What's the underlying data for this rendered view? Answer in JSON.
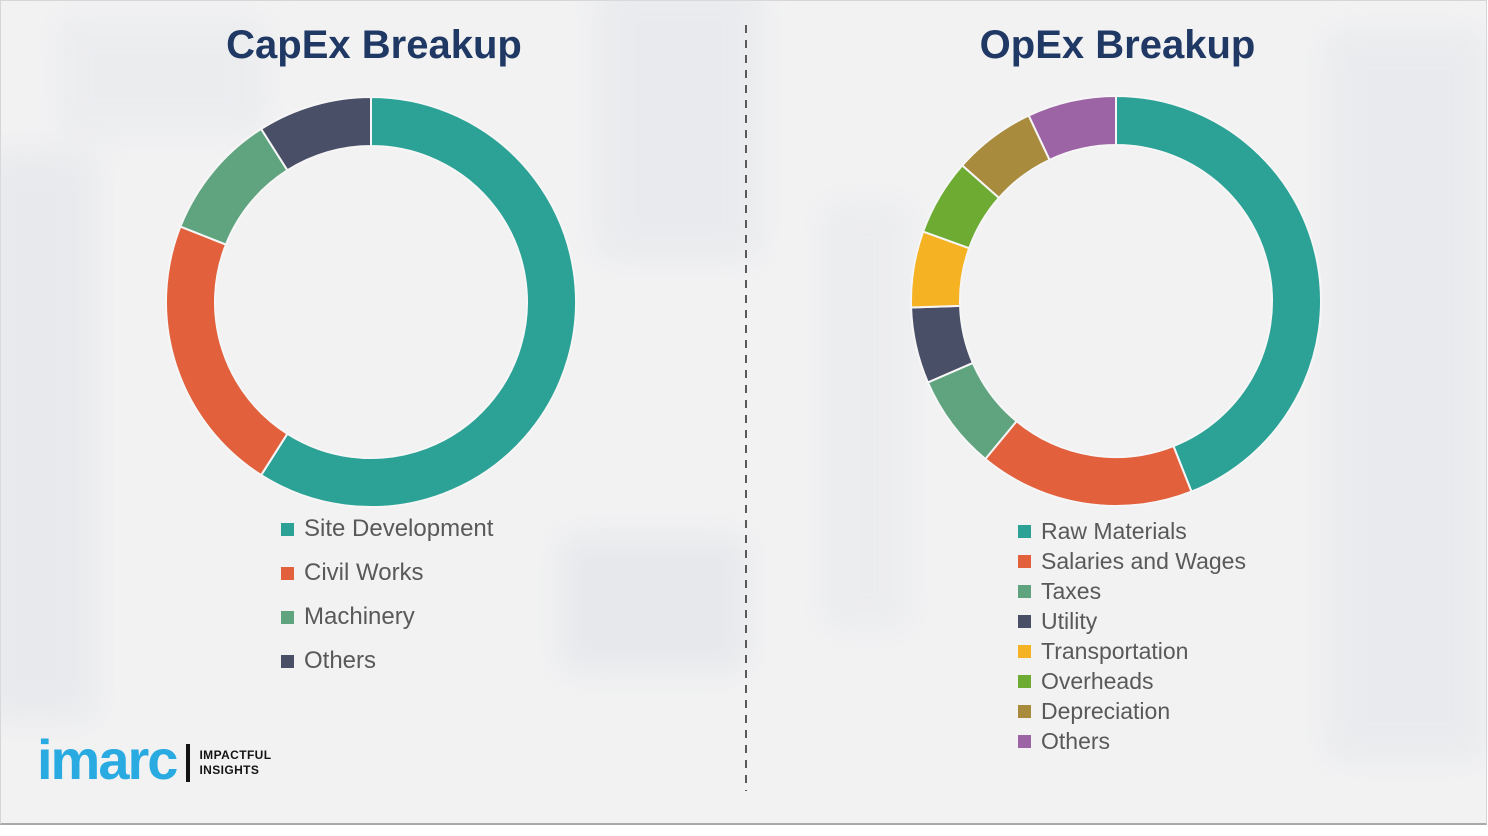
{
  "theme": {
    "background": "#f2f2f3",
    "title_color": "#1f3864",
    "legend_text_color": "#595959",
    "divider_color": "#5a5a5a",
    "bottom_rule_color": "#a9a9a9"
  },
  "chart_data": [
    {
      "type": "pie",
      "subtype": "donut",
      "title": "CapEx Breakup",
      "labels": [
        "Site Development",
        "Civil Works",
        "Machinery",
        "Others"
      ],
      "values": [
        59,
        22,
        10,
        9
      ],
      "unit": "percent-estimated-from-arc-angles",
      "colors": [
        "#2ba295",
        "#e2603c",
        "#5fa47e",
        "#4a4f68"
      ],
      "start_angle_deg": 0,
      "direction": "clockwise",
      "legend_position": "below",
      "data_labels_shown": false
    },
    {
      "type": "pie",
      "subtype": "donut",
      "title": "OpEx Breakup",
      "labels": [
        "Raw Materials",
        "Salaries and Wages",
        "Taxes",
        "Utility",
        "Transportation",
        "Overheads",
        "Depreciation",
        "Others"
      ],
      "values": [
        44,
        17,
        7.5,
        6,
        6,
        6,
        6.5,
        7
      ],
      "unit": "percent-estimated-from-arc-angles",
      "colors": [
        "#2ba295",
        "#e2603c",
        "#5fa47e",
        "#4a4f68",
        "#f5b324",
        "#6dab33",
        "#a98b3e",
        "#9c63a5"
      ],
      "start_angle_deg": 0,
      "direction": "clockwise",
      "legend_position": "below",
      "data_labels_shown": false
    }
  ],
  "logo": {
    "brand": "imarc",
    "brand_color": "#29abe2",
    "tagline_line1": "IMPACTFUL",
    "tagline_line2": "INSIGHTS",
    "tagline_color": "#141414"
  }
}
